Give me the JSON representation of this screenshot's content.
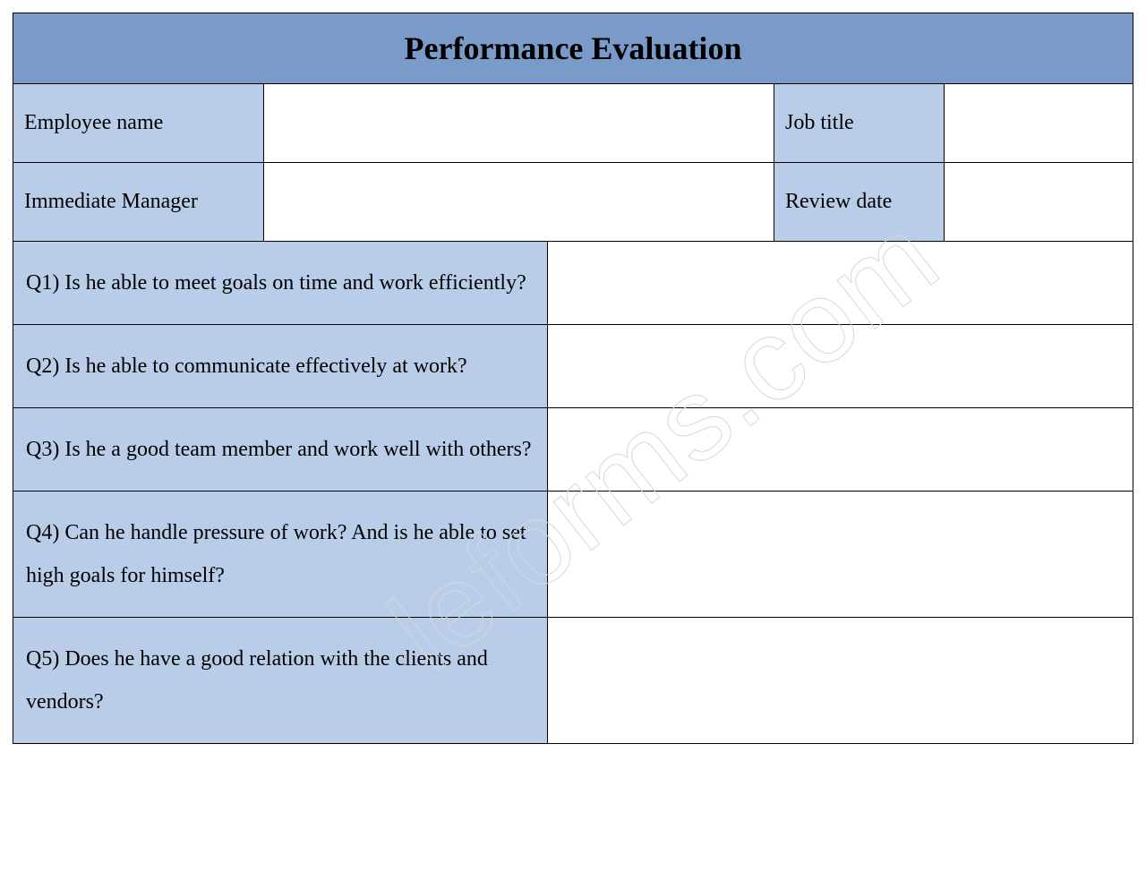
{
  "colors": {
    "title_bg": "#7a9bc9",
    "label_bg": "#b9cde9",
    "border": "#000000",
    "text": "#000000",
    "page_bg": "#ffffff",
    "watermark_stroke": "#d7d7d7"
  },
  "typography": {
    "title_fontsize": 36,
    "title_weight": "bold",
    "body_fontsize": 24,
    "font_family": "Times New Roman"
  },
  "layout": {
    "col_widths_info": [
      280,
      null,
      190,
      210
    ],
    "question_col_width": 597,
    "title_padding_v": 18,
    "info_padding_v": 30,
    "question_padding_v": 22,
    "line_height": 2.0
  },
  "title": "Performance Evaluation",
  "info_rows": [
    {
      "label1": "Employee name",
      "value1": "",
      "label2": "Job title",
      "value2": ""
    },
    {
      "label1": "Immediate Manager",
      "value1": "",
      "label2": "Review date",
      "value2": ""
    }
  ],
  "questions": [
    {
      "text": "Q1) Is he able to meet goals on time and work efficiently?",
      "answer": ""
    },
    {
      "text": "Q2) Is he able to communicate effectively at work?",
      "answer": ""
    },
    {
      "text": "Q3) Is he a good team member and work well with others?",
      "answer": ""
    },
    {
      "text": "Q4) Can he handle pressure of work? And is he able to set high goals for himself?",
      "answer": ""
    },
    {
      "text": "Q5) Does he have a good relation with the clients and vendors?",
      "answer": ""
    }
  ],
  "watermark": "leforms.com"
}
